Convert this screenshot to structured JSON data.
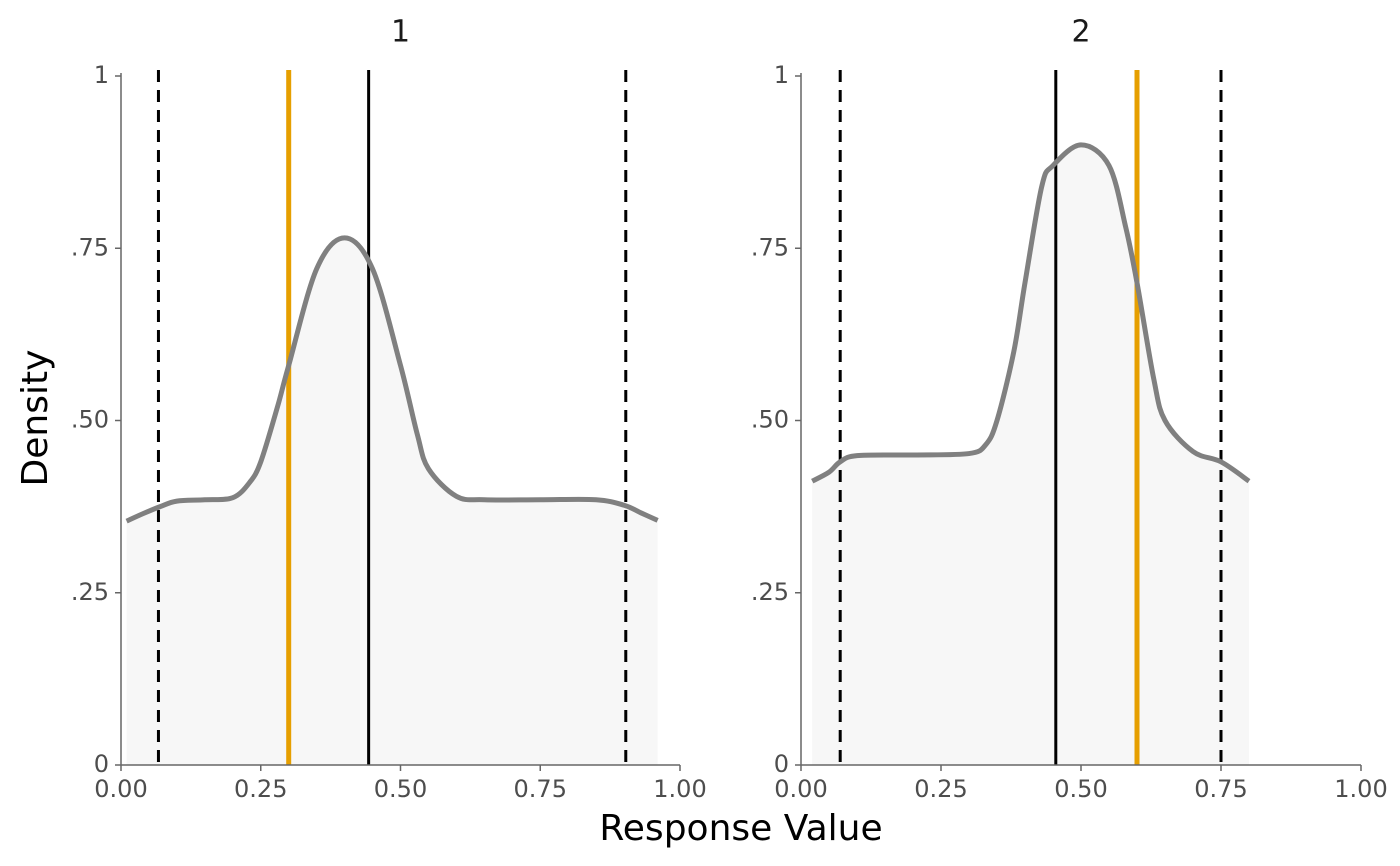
{
  "chart_data": [
    {
      "type": "density",
      "title": "1",
      "xlabel": "Response Value",
      "ylabel": "Density",
      "x": [
        0.01,
        0.04,
        0.07,
        0.1,
        0.15,
        0.2,
        0.23,
        0.25,
        0.28,
        0.3,
        0.35,
        0.4,
        0.45,
        0.5,
        0.53,
        0.55,
        0.6,
        0.65,
        0.75,
        0.85,
        0.9,
        0.93,
        0.96
      ],
      "series": [
        {
          "color": "#808080",
          "fill": "#f7f7f7",
          "values": [
            0.354,
            0.365,
            0.375,
            0.383,
            0.385,
            0.388,
            0.41,
            0.44,
            0.52,
            0.58,
            0.72,
            0.765,
            0.72,
            0.58,
            0.48,
            0.43,
            0.39,
            0.385,
            0.385,
            0.385,
            0.377,
            0.366,
            0.355
          ]
        }
      ],
      "reference_lines": [
        {
          "x": 0.067,
          "color": "#000000",
          "style": "dashed"
        },
        {
          "x": 0.3,
          "color": "#e69f00",
          "style": "solid"
        },
        {
          "x": 0.443,
          "color": "#000000",
          "style": "solid"
        },
        {
          "x": 0.903,
          "color": "#000000",
          "style": "dashed"
        }
      ],
      "xlim": [
        0,
        1
      ],
      "ylim": [
        0,
        1
      ],
      "xticks": [
        {
          "value": 0,
          "label": "0.00"
        },
        {
          "value": 0.25,
          "label": "0.25"
        },
        {
          "value": 0.5,
          "label": "0.50"
        },
        {
          "value": 0.75,
          "label": "0.75"
        },
        {
          "value": 1,
          "label": "1.00"
        }
      ],
      "yticks": [
        0,
        {
          "value": 0.25,
          "label": ".25"
        },
        {
          "value": 0.5,
          "label": ".50"
        },
        {
          "value": 0.75,
          "label": ".75"
        },
        1
      ]
    },
    {
      "type": "density",
      "title": "2",
      "x": [
        0.02,
        0.05,
        0.07,
        0.1,
        0.2,
        0.3,
        0.33,
        0.35,
        0.38,
        0.4,
        0.43,
        0.45,
        0.5,
        0.55,
        0.58,
        0.6,
        0.63,
        0.65,
        0.7,
        0.75,
        0.8
      ],
      "series": [
        {
          "color": "#808080",
          "fill": "#f7f7f7",
          "values": [
            0.412,
            0.425,
            0.44,
            0.449,
            0.45,
            0.452,
            0.465,
            0.5,
            0.6,
            0.7,
            0.84,
            0.87,
            0.9,
            0.87,
            0.78,
            0.7,
            0.56,
            0.5,
            0.455,
            0.44,
            0.412
          ]
        }
      ],
      "reference_lines": [
        {
          "x": 0.07,
          "color": "#000000",
          "style": "dashed"
        },
        {
          "x": 0.455,
          "color": "#000000",
          "style": "solid"
        },
        {
          "x": 0.6,
          "color": "#e69f00",
          "style": "solid"
        },
        {
          "x": 0.75,
          "color": "#000000",
          "style": "dashed"
        }
      ],
      "xlim": [
        0,
        1
      ],
      "ylim": [
        0,
        1
      ],
      "xticks": [
        {
          "value": 0,
          "label": "0.00"
        },
        {
          "value": 0.25,
          "label": "0.25"
        },
        {
          "value": 0.5,
          "label": "0.50"
        },
        {
          "value": 0.75,
          "label": "0.75"
        },
        {
          "value": 1,
          "label": "1.00"
        }
      ],
      "yticks": [
        0,
        {
          "value": 0.25,
          "label": ".25"
        },
        {
          "value": 0.5,
          "label": ".50"
        },
        {
          "value": 0.75,
          "label": ".75"
        },
        1
      ]
    }
  ]
}
